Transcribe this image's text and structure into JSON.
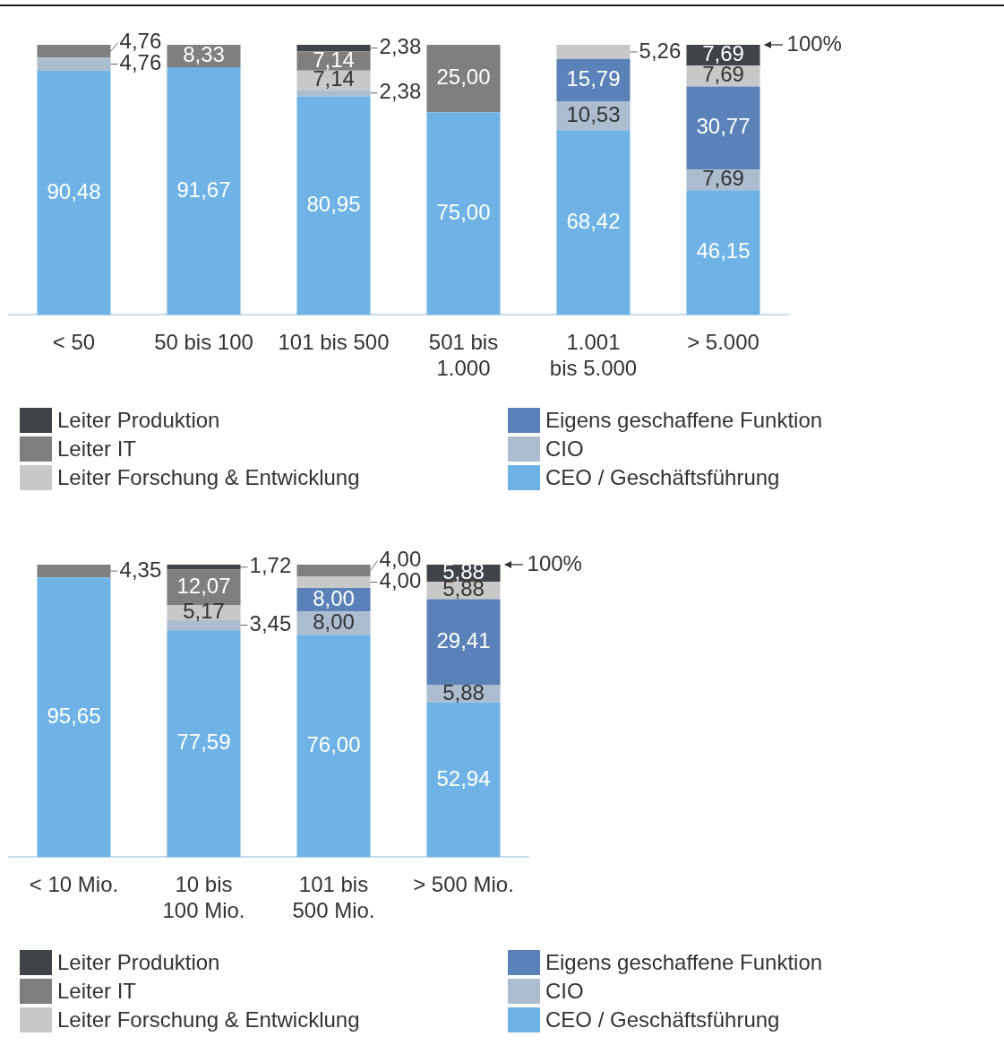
{
  "chart_data": [
    {
      "type": "bar",
      "stacked": true,
      "categories": [
        "< 50",
        "50 bis 100",
        "101 bis 500",
        "501 bis 1.000",
        "1.001 bis 5.000",
        "> 5.000"
      ],
      "ylim": [
        0,
        100
      ],
      "tick_labels": "x",
      "legend": "bottom",
      "annotations": [
        "100%"
      ],
      "series": [
        {
          "name": "CEO / Geschäftsführung",
          "color": "#6fb3e6",
          "values": [
            90.48,
            91.67,
            80.95,
            75.0,
            68.42,
            46.15
          ],
          "value_labels": [
            "90,48",
            "91,67",
            "80,95",
            "75,00",
            "68,42",
            "46,15"
          ]
        },
        {
          "name": "CIO",
          "color": "#adbdd0",
          "values": [
            4.76,
            null,
            2.38,
            null,
            10.53,
            7.69
          ],
          "value_labels": [
            "4,76",
            null,
            "2,38",
            null,
            "10,53",
            "7,69"
          ]
        },
        {
          "name": "Eigens geschaffene Funktion",
          "color": "#5b82b8",
          "values": [
            null,
            null,
            null,
            null,
            15.79,
            30.77
          ],
          "value_labels": [
            null,
            null,
            null,
            null,
            "15,79",
            "30,77"
          ]
        },
        {
          "name": "Leiter Forschung & Entwicklung",
          "color": "#c8c8c8",
          "values": [
            null,
            null,
            7.14,
            null,
            5.26,
            7.69
          ],
          "value_labels": [
            null,
            null,
            "7,14",
            null,
            "5,26",
            "7,69"
          ]
        },
        {
          "name": "Leiter IT",
          "color": "#7f7f7f",
          "values": [
            4.76,
            8.33,
            7.14,
            25.0,
            null,
            null
          ],
          "value_labels": [
            "4,76",
            "8,33",
            "7,14",
            "25,00",
            null,
            null
          ]
        },
        {
          "name": "Leiter Produktion",
          "color": "#3f4449",
          "values": [
            null,
            null,
            2.38,
            null,
            null,
            7.69
          ],
          "value_labels": [
            null,
            null,
            "2,38",
            null,
            null,
            "7,69"
          ]
        }
      ]
    },
    {
      "type": "bar",
      "stacked": true,
      "categories": [
        "< 10 Mio.",
        "10 bis 100 Mio.",
        "101 bis 500 Mio.",
        "> 500 Mio."
      ],
      "ylim": [
        0,
        100
      ],
      "tick_labels": "x",
      "legend": "bottom",
      "annotations": [
        "100%"
      ],
      "series": [
        {
          "name": "CEO / Geschäftsführung",
          "color": "#6fb3e6",
          "values": [
            95.65,
            77.59,
            76.0,
            52.94
          ],
          "value_labels": [
            "95,65",
            "77,59",
            "76,00",
            "52,94"
          ]
        },
        {
          "name": "CIO",
          "color": "#adbdd0",
          "values": [
            null,
            3.45,
            8.0,
            5.88
          ],
          "value_labels": [
            null,
            "3,45",
            "8,00",
            "5,88"
          ]
        },
        {
          "name": "Eigens geschaffene Funktion",
          "color": "#5b82b8",
          "values": [
            null,
            null,
            8.0,
            29.41
          ],
          "value_labels": [
            null,
            null,
            "8,00",
            "29,41"
          ]
        },
        {
          "name": "Leiter Forschung & Entwicklung",
          "color": "#c8c8c8",
          "values": [
            null,
            5.17,
            4.0,
            5.88
          ],
          "value_labels": [
            null,
            "5,17",
            "4,00",
            "5,88"
          ]
        },
        {
          "name": "Leiter IT",
          "color": "#7f7f7f",
          "values": [
            4.35,
            12.07,
            4.0,
            null
          ],
          "value_labels": [
            "4,35",
            "12,07",
            "4,00",
            null
          ]
        },
        {
          "name": "Leiter Produktion",
          "color": "#3f4449",
          "values": [
            null,
            1.72,
            null,
            5.88
          ],
          "value_labels": [
            null,
            "1,72",
            null,
            "5,88"
          ]
        }
      ]
    }
  ]
}
